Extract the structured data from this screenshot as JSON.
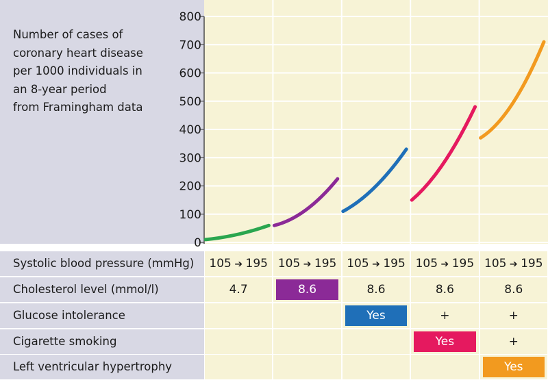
{
  "description": "Number of cases of coronary heart disease per 1000 individuals in an 8-year period from Framingham data",
  "description_lines": [
    "Number of cases of",
    "coronary heart disease",
    "per 1000 individuals in",
    "an 8-year period",
    "from Framingham data"
  ],
  "colors": {
    "panel_label_bg": "#d8d8e4",
    "panel_chart_bg": "#f7f3d6",
    "gridline": "#ffffff",
    "green": "#2aa64f",
    "purple": "#8b2a97",
    "blue": "#1f6fb8",
    "red": "#e5195f",
    "orange": "#f29a1f"
  },
  "chart_data": {
    "type": "line",
    "title": "",
    "xlabel": "",
    "ylabel": "",
    "ylim": [
      0,
      800
    ],
    "yticks": [
      "800",
      "700",
      "600",
      "500",
      "400",
      "300",
      "200",
      "100",
      "0"
    ],
    "grid": true,
    "x_axis_label": "Systolic blood pressure (mmHg)",
    "series": [
      {
        "color": "#2aa64f",
        "x": [
          105,
          150,
          195
        ],
        "y": [
          10,
          28,
          60
        ]
      },
      {
        "color": "#8b2a97",
        "x": [
          105,
          150,
          195
        ],
        "y": [
          60,
          115,
          225
        ]
      },
      {
        "color": "#1f6fb8",
        "x": [
          105,
          150,
          195
        ],
        "y": [
          110,
          195,
          330
        ]
      },
      {
        "color": "#e5195f",
        "x": [
          105,
          150,
          195
        ],
        "y": [
          150,
          280,
          480
        ]
      },
      {
        "color": "#f29a1f",
        "x": [
          105,
          150,
          195
        ],
        "y": [
          370,
          490,
          710
        ]
      }
    ]
  },
  "table": {
    "rows": [
      {
        "label": "Systolic blood pressure (mmHg)",
        "cells": [
          {
            "from": "105",
            "arrow": "➔",
            "to": "195"
          },
          {
            "from": "105",
            "arrow": "➔",
            "to": "195"
          },
          {
            "from": "105",
            "arrow": "➔",
            "to": "195"
          },
          {
            "from": "105",
            "arrow": "➔",
            "to": "195"
          },
          {
            "from": "105",
            "arrow": "➔",
            "to": "195"
          }
        ]
      },
      {
        "label": "Cholesterol level (mmol/l)",
        "cells": [
          {
            "text": "4.7"
          },
          {
            "text": "8.6",
            "highlight": "#8b2a97"
          },
          {
            "text": "8.6"
          },
          {
            "text": "8.6"
          },
          {
            "text": "8.6"
          }
        ]
      },
      {
        "label": "Glucose intolerance",
        "cells": [
          {
            "text": ""
          },
          {
            "text": ""
          },
          {
            "text": "Yes",
            "highlight": "#1f6fb8"
          },
          {
            "text": "+"
          },
          {
            "text": "+"
          }
        ]
      },
      {
        "label": "Cigarette smoking",
        "cells": [
          {
            "text": ""
          },
          {
            "text": ""
          },
          {
            "text": ""
          },
          {
            "text": "Yes",
            "highlight": "#e5195f"
          },
          {
            "text": "+"
          }
        ]
      },
      {
        "label": "Left ventricular hypertrophy",
        "cells": [
          {
            "text": ""
          },
          {
            "text": ""
          },
          {
            "text": ""
          },
          {
            "text": ""
          },
          {
            "text": "Yes",
            "highlight": "#f29a1f"
          }
        ]
      }
    ]
  }
}
